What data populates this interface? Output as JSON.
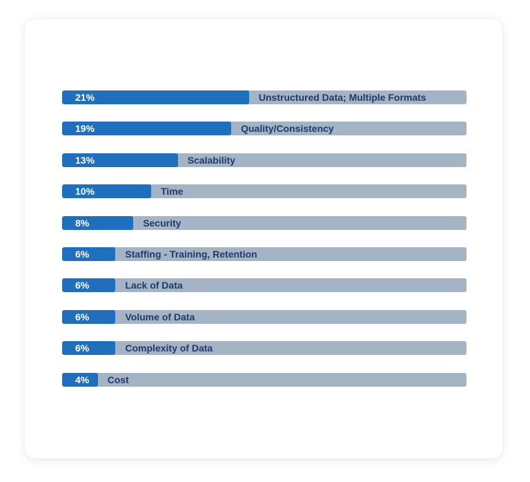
{
  "chart_data": {
    "type": "bar",
    "orientation": "horizontal",
    "categories": [
      "Unstructured Data; Multiple Formats",
      "Quality/Consistency",
      "Scalability",
      "Time",
      "Security",
      "Staffing - Training, Retention",
      "Lack of Data",
      "Volume of Data",
      "Complexity of Data",
      "Cost"
    ],
    "values": [
      21,
      19,
      13,
      10,
      8,
      6,
      6,
      6,
      6,
      4
    ],
    "value_labels": [
      "21%",
      "19%",
      "13%",
      "10%",
      "8%",
      "6%",
      "6%",
      "6%",
      "6%",
      "4%"
    ],
    "colors": {
      "fill": "#1f6fbd",
      "track": "#a5b4c4",
      "value_text": "#ffffff",
      "category_text": "#1e3a6b"
    }
  }
}
